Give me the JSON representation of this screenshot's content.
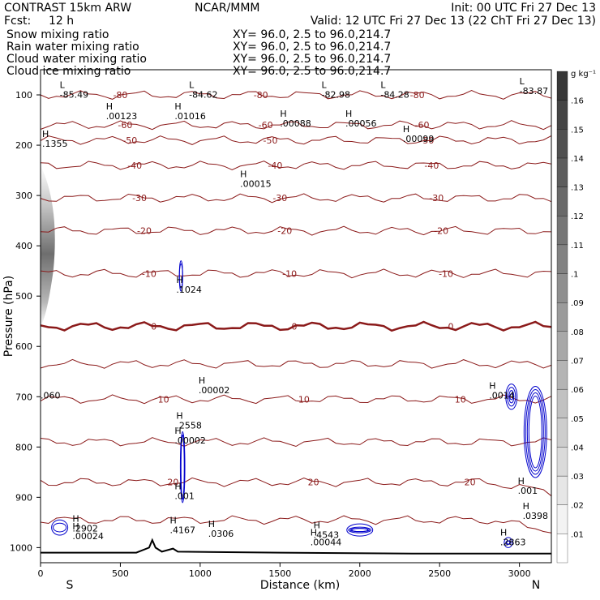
{
  "header": {
    "title": "CONTRAST 15km ARW",
    "center": "NCAR/MMM",
    "init": "Init: 00 UTC Fri 27 Dec 13",
    "fcst_label": "Fcst:",
    "fcst_value": "12 h",
    "valid": "Valid: 12 UTC Fri 27 Dec 13 (22 ChT Fri 27 Dec 13)"
  },
  "fields": [
    {
      "name": "Snow mixing ratio",
      "xy": "XY=  96.0,  2.5 to  96.0,214.7",
      "color": "#000000"
    },
    {
      "name": "Rain water mixing ratio",
      "xy": "XY=  96.0,  2.5 to  96.0,214.7",
      "color": "#cc0000"
    },
    {
      "name": "Cloud water mixing ratio",
      "xy": "XY=  96.0,  2.5 to  96.0,214.7",
      "color": "#0000cc"
    },
    {
      "name": "Cloud ice mixing ratio",
      "xy": "XY=  96.0,  2.5 to  96.0,214.7",
      "color": "#000000"
    }
  ],
  "chart_data": {
    "type": "contour",
    "xlabel": "Distance (km)",
    "ylabel": "Pressure (hPa)",
    "xlim": [
      0,
      3200
    ],
    "ylim": [
      50,
      1030
    ],
    "x_ticks": [
      0,
      500,
      1000,
      1500,
      2000,
      2500,
      3000
    ],
    "y_ticks": [
      100,
      200,
      300,
      400,
      500,
      600,
      700,
      800,
      900,
      1000
    ],
    "x_end_labels": {
      "left": "S",
      "right": "N"
    },
    "colorbar": {
      "unit": "g kg⁻¹",
      "levels": [
        0.01,
        0.02,
        0.03,
        0.04,
        0.05,
        0.06,
        0.07,
        0.08,
        0.09,
        0.1,
        0.11,
        0.12,
        0.13,
        0.14,
        0.15,
        0.16
      ],
      "labels": [
        ".01",
        ".02",
        ".03",
        ".04",
        ".05",
        ".06",
        ".07",
        ".08",
        ".09",
        ".1",
        ".11",
        ".12",
        ".13",
        ".14",
        ".15",
        ".16"
      ]
    },
    "temperature_contours": [
      {
        "p": 100,
        "label": "-80"
      },
      {
        "p": 160,
        "label": "-60"
      },
      {
        "p": 190,
        "label": "-50"
      },
      {
        "p": 240,
        "label": "-40"
      },
      {
        "p": 305,
        "label": "-30"
      },
      {
        "p": 370,
        "label": "-20"
      },
      {
        "p": 455,
        "label": "-10"
      },
      {
        "p": 560,
        "label": "0",
        "bold": true
      },
      {
        "p": 635,
        "label": ""
      },
      {
        "p": 705,
        "label": "10"
      },
      {
        "p": 790,
        "label": ""
      },
      {
        "p": 870,
        "label": "20"
      },
      {
        "p": 945,
        "label": ""
      }
    ],
    "extrema": [
      {
        "x": 120,
        "p": 102,
        "type": "L",
        "value": "-85.49",
        "color": "#8b1a1a"
      },
      {
        "x": 930,
        "p": 102,
        "type": "L",
        "value": "-84.62",
        "color": "#8b1a1a"
      },
      {
        "x": 1760,
        "p": 102,
        "type": "L",
        "value": "-82.98",
        "color": "#8b1a1a"
      },
      {
        "x": 2130,
        "p": 102,
        "type": "L",
        "value": "-84.28",
        "color": "#8b1a1a"
      },
      {
        "x": 3000,
        "p": 95,
        "type": "L",
        "value": "-83.87",
        "color": "#8b1a1a"
      },
      {
        "x": 410,
        "p": 145,
        "type": "H",
        "value": ".00123",
        "color": "#000000"
      },
      {
        "x": 840,
        "p": 145,
        "type": "H",
        "value": ".01016",
        "color": "#000000"
      },
      {
        "x": 1500,
        "p": 160,
        "type": "H",
        "value": ".00088",
        "color": "#000000"
      },
      {
        "x": 1910,
        "p": 160,
        "type": "H",
        "value": ".00056",
        "color": "#000000"
      },
      {
        "x": 2270,
        "p": 190,
        "type": "H",
        "value": ".00099",
        "color": "#000000"
      },
      {
        "x": 10,
        "p": 200,
        "type": "H",
        "value": ".1355",
        "color": "#000000"
      },
      {
        "x": 1250,
        "p": 280,
        "type": "H",
        "value": ".00015",
        "color": "#000000"
      },
      {
        "x": 850,
        "p": 490,
        "type": "H",
        "value": ".1024",
        "color": "#0000cc"
      },
      {
        "x": 990,
        "p": 690,
        "type": "H",
        "value": ".00002",
        "color": "#cc0000"
      },
      {
        "x": 850,
        "p": 760,
        "type": "H",
        "value": ".2558",
        "color": "#0000cc"
      },
      {
        "x": 840,
        "p": 790,
        "type": "H",
        "value": ".00002",
        "color": "#cc0000"
      },
      {
        "x": 840,
        "p": 900,
        "type": "H",
        "value": ".001",
        "color": "#0000cc"
      },
      {
        "x": 200,
        "p": 965,
        "type": "H",
        "value": ".2902",
        "color": "#0000cc"
      },
      {
        "x": 200,
        "p": 980,
        "type": "H",
        "value": ".00024",
        "color": "#cc0000"
      },
      {
        "x": 810,
        "p": 968,
        "type": "H",
        "value": ".4167",
        "color": "#0000cc"
      },
      {
        "x": 1050,
        "p": 975,
        "type": "H",
        "value": ".0306",
        "color": "#0000cc"
      },
      {
        "x": 1710,
        "p": 978,
        "type": "H",
        "value": ".4543",
        "color": "#0000cc"
      },
      {
        "x": 1690,
        "p": 992,
        "type": "H",
        "value": ".00044",
        "color": "#cc0000"
      },
      {
        "x": 2880,
        "p": 992,
        "type": "H",
        "value": ".2863",
        "color": "#0000cc"
      },
      {
        "x": 2810,
        "p": 700,
        "type": "H",
        "value": ".0014",
        "color": "#cc0000"
      },
      {
        "x": 2990,
        "p": 890,
        "type": "H",
        "value": ".001",
        "color": "#0000cc"
      },
      {
        "x": 3020,
        "p": 940,
        "type": "H",
        "value": ".0398",
        "color": "#cc0000"
      },
      {
        "x": 0,
        "p": 700,
        "type": "",
        "value": ".060",
        "color": "#cc0000"
      }
    ],
    "terrain_profile": [
      [
        0,
        1010
      ],
      [
        600,
        1010
      ],
      [
        680,
        1000
      ],
      [
        700,
        985
      ],
      [
        720,
        1000
      ],
      [
        760,
        1008
      ],
      [
        830,
        1002
      ],
      [
        860,
        1008
      ],
      [
        1500,
        1010
      ],
      [
        2400,
        1012
      ],
      [
        3200,
        1012
      ]
    ]
  }
}
